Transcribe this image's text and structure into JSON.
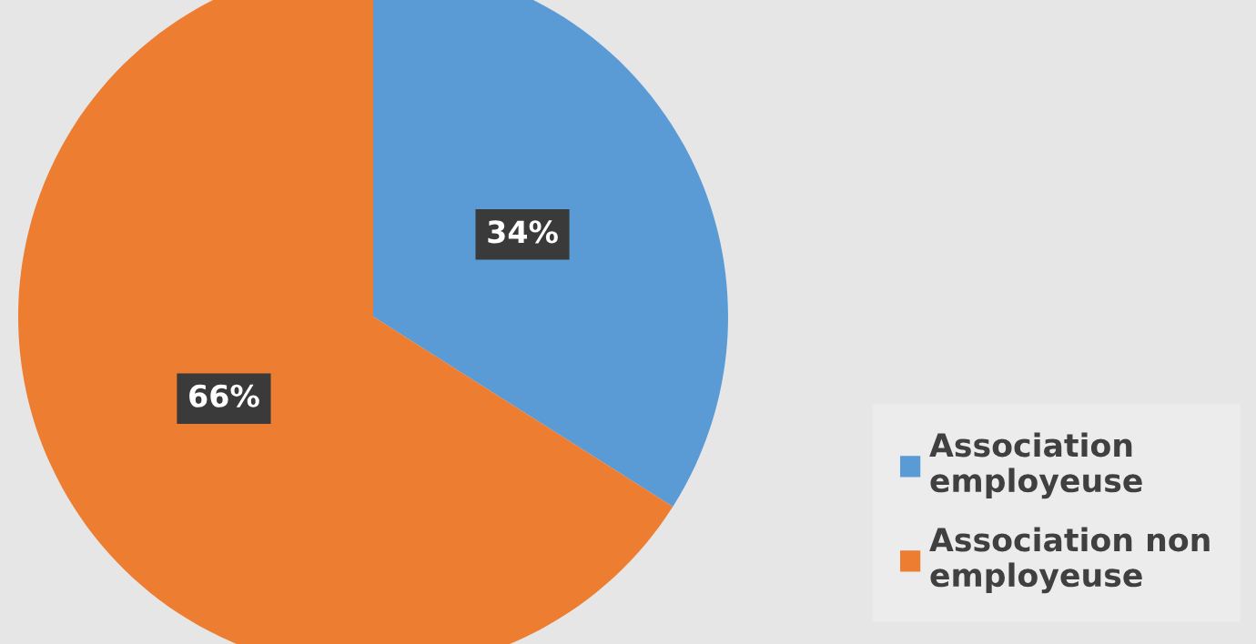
{
  "chart_data": {
    "type": "pie",
    "categories": [
      "Association employeuse",
      "Association non employeuse"
    ],
    "values": [
      34,
      66
    ],
    "colors": [
      "#5b9bd5",
      "#ed7d31"
    ],
    "value_labels": [
      "34%",
      "66%"
    ],
    "legend": "bottom right"
  }
}
